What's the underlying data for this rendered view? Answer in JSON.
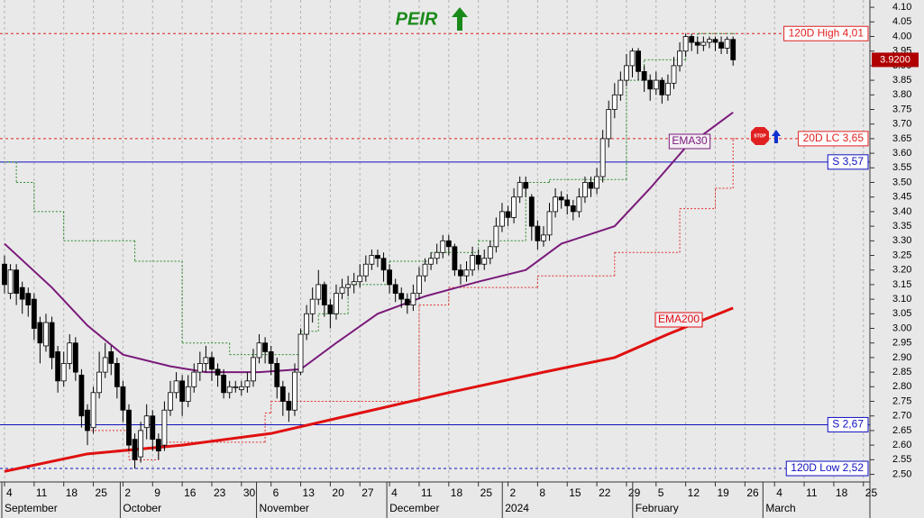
{
  "chart_data": {
    "type": "candlestick",
    "title": "PEIR",
    "stop_icon": "STOP",
    "xlim": [
      -0.76,
      146.1
    ],
    "ylim": [
      2.48,
      4.125
    ],
    "xticks": [
      {
        "value": 0,
        "label": "4"
      },
      {
        "value": 5,
        "label": "11"
      },
      {
        "value": 10,
        "label": "18"
      },
      {
        "value": 15,
        "label": "25"
      },
      {
        "value": 20,
        "label": "2"
      },
      {
        "value": 25,
        "label": "9"
      },
      {
        "value": 30,
        "label": "16"
      },
      {
        "value": 35,
        "label": "23"
      },
      {
        "value": 40,
        "label": "30"
      },
      {
        "value": 45,
        "label": "6"
      },
      {
        "value": 50,
        "label": "13"
      },
      {
        "value": 55,
        "label": "20"
      },
      {
        "value": 60,
        "label": "27"
      },
      {
        "value": 65,
        "label": "4"
      },
      {
        "value": 70,
        "label": "11"
      },
      {
        "value": 75,
        "label": "18"
      },
      {
        "value": 80,
        "label": "25"
      },
      {
        "value": 85,
        "label": "2"
      },
      {
        "value": 90,
        "label": "8"
      },
      {
        "value": 95,
        "label": "15"
      },
      {
        "value": 100,
        "label": "22"
      },
      {
        "value": 105,
        "label": "29"
      },
      {
        "value": 110,
        "label": "5"
      },
      {
        "value": 115,
        "label": "12"
      },
      {
        "value": 120,
        "label": "19"
      },
      {
        "value": 125,
        "label": "26"
      },
      {
        "value": 130,
        "label": "4"
      },
      {
        "value": 135,
        "label": "11"
      },
      {
        "value": 140,
        "label": "18"
      },
      {
        "value": 145,
        "label": "25"
      }
    ],
    "months": [
      {
        "value": 0,
        "label": "September"
      },
      {
        "value": 20,
        "label": "October"
      },
      {
        "value": 43,
        "label": "November"
      },
      {
        "value": 65,
        "label": "December"
      },
      {
        "value": 84.5,
        "label": "2024"
      },
      {
        "value": 106.5,
        "label": "February"
      },
      {
        "value": 128.5,
        "label": "March"
      }
    ],
    "yticks": [
      {
        "value": 2.5,
        "label": "2.50"
      },
      {
        "value": 2.55,
        "label": "2.55"
      },
      {
        "value": 2.6,
        "label": "2.60"
      },
      {
        "value": 2.65,
        "label": "2.65"
      },
      {
        "value": 2.7,
        "label": "2.70"
      },
      {
        "value": 2.75,
        "label": "2.75"
      },
      {
        "value": 2.8,
        "label": "2.80"
      },
      {
        "value": 2.85,
        "label": "2.85"
      },
      {
        "value": 2.9,
        "label": "2.90"
      },
      {
        "value": 2.95,
        "label": "2.95"
      },
      {
        "value": 3.0,
        "label": "3.00"
      },
      {
        "value": 3.05,
        "label": "3.05"
      },
      {
        "value": 3.1,
        "label": "3.10"
      },
      {
        "value": 3.15,
        "label": "3.15"
      },
      {
        "value": 3.2,
        "label": "3.20"
      },
      {
        "value": 3.25,
        "label": "3.25"
      },
      {
        "value": 3.3,
        "label": "3.30"
      },
      {
        "value": 3.35,
        "label": "3.35"
      },
      {
        "value": 3.4,
        "label": "3.40"
      },
      {
        "value": 3.45,
        "label": "3.45"
      },
      {
        "value": 3.5,
        "label": "3.50"
      },
      {
        "value": 3.55,
        "label": "3.55"
      },
      {
        "value": 3.6,
        "label": "3.60"
      },
      {
        "value": 3.65,
        "label": "3.65"
      },
      {
        "value": 3.7,
        "label": "3.70"
      },
      {
        "value": 3.75,
        "label": "3.75"
      },
      {
        "value": 3.8,
        "label": "3.80"
      },
      {
        "value": 3.85,
        "label": "3.85"
      },
      {
        "value": 3.9,
        "label": "3.90"
      },
      {
        "value": 3.95,
        "label": "3.95"
      },
      {
        "value": 4.0,
        "label": "4.00"
      },
      {
        "value": 4.05,
        "label": "4.05"
      },
      {
        "value": 4.1,
        "label": "4.10"
      }
    ],
    "grid": true,
    "up_color": "#ffffff",
    "down_color": "#000000",
    "ohlc": {
      "open": [
        3.22,
        3.12,
        3.2,
        3.14,
        3.12,
        3.1,
        3.02,
        2.94,
        3.02,
        2.92,
        2.82,
        2.88,
        2.95,
        2.84,
        2.72,
        2.66,
        2.78,
        2.85,
        2.92,
        2.88,
        2.8,
        2.72,
        2.62,
        2.56,
        2.66,
        2.7,
        2.62,
        2.6,
        2.72,
        2.78,
        2.82,
        2.75,
        2.8,
        2.85,
        2.88,
        2.9,
        2.86,
        2.84,
        2.78,
        2.8,
        2.79,
        2.8,
        2.82,
        2.9,
        2.95,
        2.92,
        2.88,
        2.8,
        2.75,
        2.72,
        2.85,
        2.98,
        3.05,
        3.1,
        3.15,
        3.08,
        3.05,
        3.12,
        3.14,
        3.15,
        3.16,
        3.18,
        3.22,
        3.25,
        3.24,
        3.2,
        3.15,
        3.12,
        3.1,
        3.08,
        3.12,
        3.18,
        3.22,
        3.24,
        3.26,
        3.3,
        3.28,
        3.2,
        3.18,
        3.2,
        3.25,
        3.22,
        3.24,
        3.28,
        3.35,
        3.4,
        3.38,
        3.45,
        3.5,
        3.45,
        3.35,
        3.3,
        3.32,
        3.4,
        3.45,
        3.44,
        3.42,
        3.4,
        3.45,
        3.5,
        3.48,
        3.52,
        3.65,
        3.75,
        3.8,
        3.85,
        3.9,
        3.95,
        3.88,
        3.85,
        3.82,
        3.85,
        3.8,
        3.84,
        3.9,
        3.95,
        4.0,
        3.98,
        3.97,
        3.98,
        3.99,
        3.98,
        3.96,
        3.99
      ],
      "high": [
        3.25,
        3.22,
        3.22,
        3.16,
        3.14,
        3.12,
        3.04,
        3.05,
        3.04,
        2.94,
        2.92,
        2.98,
        2.97,
        2.86,
        2.74,
        2.8,
        2.92,
        2.95,
        2.94,
        2.9,
        2.82,
        2.74,
        2.64,
        2.68,
        2.74,
        2.72,
        2.64,
        2.75,
        2.82,
        2.85,
        2.84,
        2.84,
        2.88,
        2.92,
        2.94,
        2.92,
        2.88,
        2.86,
        2.82,
        2.82,
        2.82,
        2.85,
        2.93,
        2.98,
        2.97,
        2.94,
        2.9,
        2.82,
        2.78,
        2.88,
        3.0,
        3.08,
        3.14,
        3.2,
        3.16,
        3.1,
        3.15,
        3.17,
        3.18,
        3.19,
        3.22,
        3.25,
        3.27,
        3.27,
        3.26,
        3.22,
        3.17,
        3.14,
        3.12,
        3.15,
        3.21,
        3.24,
        3.26,
        3.29,
        3.32,
        3.32,
        3.29,
        3.22,
        3.23,
        3.28,
        3.27,
        3.27,
        3.3,
        3.38,
        3.43,
        3.42,
        3.48,
        3.52,
        3.52,
        3.46,
        3.37,
        3.35,
        3.43,
        3.48,
        3.47,
        3.46,
        3.44,
        3.48,
        3.52,
        3.52,
        3.55,
        3.68,
        3.78,
        3.84,
        3.88,
        3.94,
        3.96,
        3.96,
        3.9,
        3.87,
        3.88,
        3.86,
        3.87,
        3.93,
        3.98,
        4.01,
        4.01,
        4.0,
        4.0,
        4.0,
        4.0,
        4.0,
        4.0,
        4.0
      ],
      "low": [
        3.12,
        3.1,
        3.08,
        3.05,
        3.04,
        2.96,
        2.88,
        2.92,
        2.86,
        2.78,
        2.8,
        2.86,
        2.82,
        2.66,
        2.6,
        2.64,
        2.76,
        2.83,
        2.84,
        2.76,
        2.68,
        2.58,
        2.52,
        2.54,
        2.62,
        2.58,
        2.55,
        2.58,
        2.7,
        2.76,
        2.7,
        2.73,
        2.78,
        2.82,
        2.85,
        2.82,
        2.8,
        2.76,
        2.76,
        2.78,
        2.77,
        2.78,
        2.8,
        2.88,
        2.88,
        2.84,
        2.76,
        2.7,
        2.68,
        2.7,
        2.84,
        2.96,
        3.02,
        3.08,
        3.04,
        3.0,
        3.03,
        3.1,
        3.11,
        3.12,
        3.14,
        3.16,
        3.2,
        3.21,
        3.16,
        3.12,
        3.09,
        3.07,
        3.05,
        3.06,
        3.1,
        3.16,
        3.2,
        3.22,
        3.24,
        3.25,
        3.18,
        3.15,
        3.16,
        3.18,
        3.2,
        3.2,
        3.22,
        3.26,
        3.33,
        3.35,
        3.36,
        3.43,
        3.45,
        3.3,
        3.27,
        3.28,
        3.3,
        3.38,
        3.41,
        3.39,
        3.37,
        3.38,
        3.43,
        3.45,
        3.46,
        3.5,
        3.62,
        3.72,
        3.78,
        3.83,
        3.86,
        3.85,
        3.81,
        3.78,
        3.8,
        3.77,
        3.78,
        3.82,
        3.88,
        3.93,
        3.95,
        3.94,
        3.95,
        3.96,
        3.95,
        3.94,
        3.94,
        3.9
      ],
      "close": [
        3.15,
        3.2,
        3.12,
        3.1,
        3.08,
        3.0,
        2.95,
        3.02,
        2.9,
        2.82,
        2.88,
        2.95,
        2.85,
        2.7,
        2.65,
        2.78,
        2.85,
        2.9,
        2.88,
        2.8,
        2.72,
        2.6,
        2.55,
        2.65,
        2.7,
        2.62,
        2.58,
        2.72,
        2.78,
        2.82,
        2.75,
        2.8,
        2.85,
        2.88,
        2.9,
        2.86,
        2.84,
        2.78,
        2.8,
        2.8,
        2.8,
        2.82,
        2.9,
        2.95,
        2.92,
        2.88,
        2.8,
        2.75,
        2.72,
        2.85,
        2.98,
        3.05,
        3.1,
        3.15,
        3.08,
        3.05,
        3.12,
        3.14,
        3.15,
        3.16,
        3.18,
        3.22,
        3.25,
        3.24,
        3.2,
        3.15,
        3.12,
        3.1,
        3.08,
        3.12,
        3.18,
        3.22,
        3.24,
        3.26,
        3.3,
        3.28,
        3.2,
        3.18,
        3.2,
        3.25,
        3.22,
        3.24,
        3.28,
        3.35,
        3.4,
        3.38,
        3.45,
        3.5,
        3.48,
        3.35,
        3.3,
        3.32,
        3.4,
        3.45,
        3.44,
        3.42,
        3.4,
        3.45,
        3.5,
        3.48,
        3.52,
        3.65,
        3.75,
        3.8,
        3.85,
        3.9,
        3.95,
        3.88,
        3.85,
        3.82,
        3.85,
        3.8,
        3.84,
        3.9,
        3.95,
        4.0,
        3.98,
        3.97,
        3.98,
        3.99,
        3.98,
        3.96,
        3.99,
        3.92
      ]
    },
    "lines": [
      {
        "name": "EMA30",
        "color": "#7a1a7a",
        "x": [
          0,
          8,
          14,
          20,
          28,
          34,
          43,
          50,
          56,
          63,
          71,
          80,
          88,
          94,
          103,
          109,
          115,
          123
        ],
        "values": [
          3.29,
          3.14,
          3.01,
          2.91,
          2.87,
          2.85,
          2.85,
          2.86,
          2.95,
          3.05,
          3.11,
          3.16,
          3.2,
          3.29,
          3.35,
          3.48,
          3.62,
          3.74
        ]
      },
      {
        "name": "EMA200",
        "color": "#e01010",
        "x": [
          0,
          14,
          30,
          45,
          60,
          75,
          91,
          103,
          112,
          123
        ],
        "values": [
          2.51,
          2.57,
          2.6,
          2.64,
          2.71,
          2.78,
          2.85,
          2.9,
          2.98,
          3.07
        ]
      }
    ],
    "steps": [
      {
        "color": "#2a8a2a",
        "x": [
          0,
          2,
          5,
          10,
          15,
          22,
          30,
          38,
          45,
          50,
          53,
          58,
          65,
          72,
          80,
          88,
          92,
          105,
          108,
          115,
          117,
          123
        ],
        "values": [
          3.57,
          3.5,
          3.4,
          3.3,
          3.3,
          3.23,
          2.95,
          2.91,
          2.91,
          2.99,
          3.05,
          3.15,
          3.23,
          3.26,
          3.3,
          3.5,
          3.51,
          3.85,
          3.92,
          3.98,
          4.01,
          4.01
        ]
      },
      {
        "color": "#e03030",
        "x": [
          14,
          21,
          26,
          44,
          45,
          70,
          75,
          90,
          103,
          114,
          120,
          123
        ],
        "values": [
          2.65,
          2.55,
          2.61,
          2.71,
          2.75,
          3.08,
          3.14,
          3.18,
          3.26,
          3.41,
          3.48,
          3.65
        ]
      }
    ],
    "levels": [
      {
        "value": 4.01,
        "label": "120D High 4,01",
        "color": "#e02020",
        "style": "dashed"
      },
      {
        "value": 3.65,
        "label": "20D LC 3,65",
        "color": "#e02020",
        "style": "dashed"
      },
      {
        "value": 3.57,
        "label": "S 3,57",
        "color": "#1010c0",
        "style": "solid"
      },
      {
        "value": 2.67,
        "label": "S 2,67",
        "color": "#1010c0",
        "style": "solid"
      },
      {
        "value": 2.52,
        "label": "120D Low 2,52",
        "color": "#1010c0",
        "style": "dashed"
      }
    ],
    "last_price": {
      "value": 3.92,
      "label": "3.9200"
    }
  }
}
